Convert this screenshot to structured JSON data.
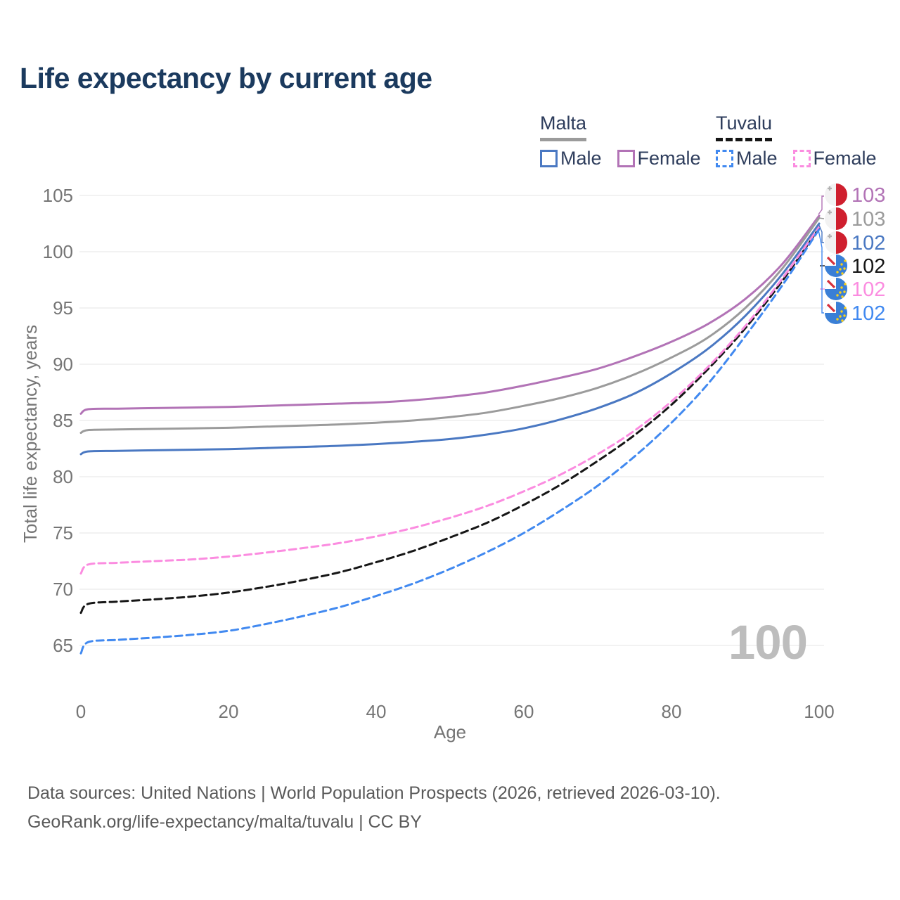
{
  "title": "Life expectancy by current age",
  "legend": {
    "malta": {
      "label": "Malta",
      "male": "Male",
      "female": "Female"
    },
    "tuvalu": {
      "label": "Tuvalu",
      "male": "Male",
      "female": "Female"
    }
  },
  "watermark": "100",
  "footer": {
    "line1": "Data sources: United Nations | World Population Prospects (2026, retrieved 2026-03-10).",
    "line2": "GeoRank.org/life-expectancy/malta/tuvalu | CC BY"
  },
  "colors": {
    "malta_male": "#4a78c2",
    "malta_female": "#b273b6",
    "malta_both": "#9b9b9b",
    "tuvalu_male": "#4189f0",
    "tuvalu_female": "#fb8ce0",
    "tuvalu_both": "#161616",
    "grid": "#e9e9e9",
    "axis_text": "#757575",
    "title_text": "#1b3a5e",
    "watermark_text": "#bdbdbd",
    "malta_flag_red": "#cf1f2e",
    "tuvalu_flag_blue": "#3a7fd6",
    "tuvalu_star_yellow": "#fcd116"
  },
  "chart_data": {
    "type": "line",
    "title": "Life expectancy by current age",
    "xlabel": "Age",
    "ylabel": "Total life expectancy, years",
    "x_ticks": [
      0,
      20,
      40,
      60,
      80,
      100
    ],
    "y_ticks": [
      65,
      70,
      75,
      80,
      85,
      90,
      95,
      100,
      105
    ],
    "xlim": [
      0,
      100
    ],
    "ylim": [
      63,
      105
    ],
    "grid": "horizontal",
    "legend_position": "top-right",
    "x": [
      0,
      1,
      5,
      10,
      15,
      20,
      25,
      30,
      35,
      40,
      45,
      50,
      55,
      60,
      65,
      70,
      75,
      80,
      85,
      90,
      95,
      100
    ],
    "series": [
      {
        "name": "Malta Female",
        "country": "Malta",
        "sex": "Female",
        "style": "solid",
        "color": "#b273b6",
        "flag": "malta",
        "end_label": "103",
        "values": [
          85.6,
          86.0,
          86.05,
          86.1,
          86.15,
          86.2,
          86.3,
          86.4,
          86.5,
          86.6,
          86.8,
          87.1,
          87.5,
          88.1,
          88.8,
          89.6,
          90.7,
          92.0,
          93.6,
          95.8,
          98.9,
          103.2
        ]
      },
      {
        "name": "Malta Both sexes",
        "country": "Malta",
        "sex": "Both",
        "style": "solid",
        "color": "#9b9b9b",
        "flag": "malta",
        "end_label": "103",
        "values": [
          83.9,
          84.15,
          84.2,
          84.25,
          84.3,
          84.35,
          84.45,
          84.55,
          84.65,
          84.8,
          85.0,
          85.3,
          85.7,
          86.3,
          87.0,
          87.9,
          89.1,
          90.6,
          92.4,
          95.0,
          98.5,
          103.0
        ]
      },
      {
        "name": "Malta Male",
        "country": "Malta",
        "sex": "Male",
        "style": "solid",
        "color": "#4a78c2",
        "flag": "malta",
        "end_label": "102",
        "values": [
          82.0,
          82.25,
          82.3,
          82.35,
          82.4,
          82.45,
          82.55,
          82.65,
          82.75,
          82.9,
          83.1,
          83.35,
          83.75,
          84.3,
          85.1,
          86.1,
          87.4,
          89.2,
          91.4,
          94.3,
          98.0,
          102.5
        ]
      },
      {
        "name": "Tuvalu Both sexes",
        "country": "Tuvalu",
        "sex": "Both",
        "style": "dashed",
        "color": "#161616",
        "flag": "tuvalu",
        "end_label": "102",
        "values": [
          67.9,
          68.7,
          68.9,
          69.1,
          69.35,
          69.7,
          70.2,
          70.8,
          71.5,
          72.4,
          73.4,
          74.6,
          75.9,
          77.5,
          79.3,
          81.4,
          83.7,
          86.4,
          89.6,
          93.2,
          97.4,
          102.1
        ]
      },
      {
        "name": "Tuvalu Female",
        "country": "Tuvalu",
        "sex": "Female",
        "style": "dashed",
        "color": "#fb8ce0",
        "flag": "tuvalu",
        "end_label": "102",
        "values": [
          71.4,
          72.2,
          72.35,
          72.5,
          72.65,
          72.9,
          73.25,
          73.65,
          74.1,
          74.7,
          75.45,
          76.35,
          77.4,
          78.7,
          80.2,
          82.0,
          84.1,
          86.7,
          89.8,
          93.4,
          97.6,
          102.2
        ]
      },
      {
        "name": "Tuvalu Male",
        "country": "Tuvalu",
        "sex": "Male",
        "style": "dashed",
        "color": "#4189f0",
        "flag": "tuvalu",
        "end_label": "102",
        "values": [
          64.3,
          65.3,
          65.5,
          65.7,
          65.95,
          66.3,
          66.9,
          67.6,
          68.4,
          69.4,
          70.5,
          71.8,
          73.3,
          75.0,
          77.0,
          79.2,
          81.8,
          84.8,
          88.3,
          92.5,
          97.0,
          102.0
        ]
      }
    ]
  }
}
